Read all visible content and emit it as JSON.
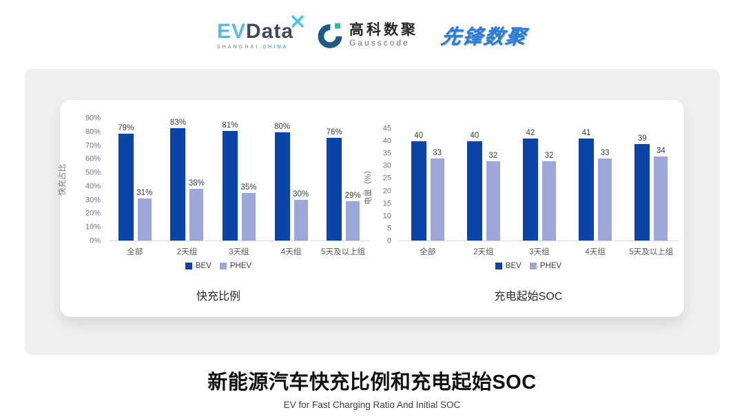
{
  "header": {
    "evdata_logo": {
      "ev": "EV",
      "data": "Data",
      "sub_left": "SHANGHAI",
      "sub_right": "CHINA",
      "ev_color": "#54BCE6",
      "data_color": "#3D4B5C",
      "accent_color": "#3EC6F0"
    },
    "gausscode_logo": {
      "cn": "高科数聚",
      "en": "Gausscode",
      "mark_color": "#1D5B88",
      "mark_accent": "#2FB8A8"
    },
    "pioneer_logo": {
      "text": "先锋数聚",
      "color": "#2B7CD6"
    }
  },
  "chart_data": [
    {
      "type": "bar",
      "title": "快充比例",
      "ylabel": "快充占比",
      "xlabel": "",
      "categories": [
        "全部",
        "2天组",
        "3天组",
        "4天组",
        "5天及以上组"
      ],
      "series": [
        {
          "name": "BEV",
          "color": "#0A44A8",
          "values": [
            79,
            83,
            81,
            80,
            76
          ],
          "data_labels": [
            "79%",
            "83%",
            "81%",
            "80%",
            "76%"
          ]
        },
        {
          "name": "PHEV",
          "color": "#9DA7DA",
          "values": [
            31,
            38,
            35,
            30,
            29
          ],
          "data_labels": [
            "31%",
            "38%",
            "35%",
            "30%",
            "29%"
          ]
        }
      ],
      "ylim": [
        0,
        90
      ],
      "ytick_values": [
        0,
        10,
        20,
        30,
        40,
        50,
        60,
        70,
        80,
        90
      ],
      "yticks": [
        "0%",
        "10%",
        "20%",
        "30%",
        "40%",
        "50%",
        "60%",
        "70%",
        "80%",
        "90%"
      ],
      "grid": false,
      "legend_position": "bottom"
    },
    {
      "type": "bar",
      "title": "充电起始SOC",
      "ylabel": "电量（%）",
      "xlabel": "",
      "categories": [
        "全部",
        "2天组",
        "3天组",
        "4天组",
        "5天及以上组"
      ],
      "series": [
        {
          "name": "BEV",
          "color": "#0A44A8",
          "values": [
            40,
            40,
            42,
            41,
            39
          ],
          "data_labels": [
            "40",
            "40",
            "42",
            "41",
            "39"
          ]
        },
        {
          "name": "PHEV",
          "color": "#9DA7DA",
          "values": [
            33,
            32,
            32,
            33,
            34
          ],
          "data_labels": [
            "33",
            "32",
            "32",
            "33",
            "34"
          ]
        }
      ],
      "ylim": [
        0,
        45
      ],
      "ytick_values": [
        0,
        5,
        10,
        15,
        20,
        25,
        30,
        35,
        40,
        45
      ],
      "yticks": [
        "0",
        "5",
        "10",
        "15",
        "20",
        "25",
        "30",
        "35",
        "40",
        "45"
      ],
      "grid": false,
      "legend_position": "bottom"
    }
  ],
  "footer": {
    "title": "新能源汽车快充比例和充电起始SOC",
    "subtitle": "EV for Fast Charging Ratio And Initial SOC"
  }
}
